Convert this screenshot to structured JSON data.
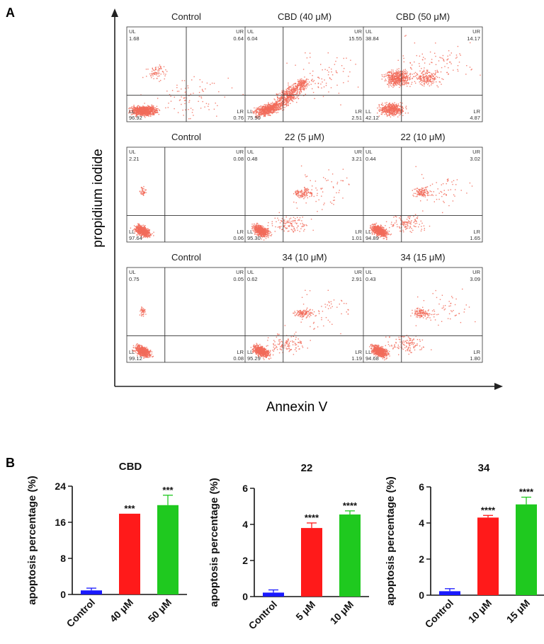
{
  "panel_a": {
    "label": "A",
    "xlabel": "Annexin V",
    "ylabel": "propidium iodide",
    "quadrant_labels": {
      "ul": "UL",
      "ur": "UR",
      "ll": "LL",
      "lr": "LR"
    },
    "plots": [
      {
        "title": "Control",
        "ul": "1.68",
        "ur": "0.64",
        "ll": "96.92",
        "lr": "0.76"
      },
      {
        "title": "CBD (40 μM)",
        "ul": "6.04",
        "ur": "15.55",
        "ll": "75.90",
        "lr": "2.51"
      },
      {
        "title": "CBD (50 μM)",
        "ul": "38.84",
        "ur": "14.17",
        "ll": "42.12",
        "lr": "4.87"
      },
      {
        "title": "Control",
        "ul": "2.21",
        "ur": "0.08",
        "ll": "97.64",
        "lr": "0.06"
      },
      {
        "title": "22 (5 μM)",
        "ul": "0.48",
        "ur": "3.21",
        "ll": "95.30",
        "lr": "1.01"
      },
      {
        "title": "22 (10 μM)",
        "ul": "0.44",
        "ur": "3.02",
        "ll": "94.89",
        "lr": "1.65"
      },
      {
        "title": "Control",
        "ul": "0.75",
        "ur": "0.05",
        "ll": "99.12",
        "lr": "0.08"
      },
      {
        "title": "34 (10 μM)",
        "ul": "0.62",
        "ur": "2.91",
        "ll": "95.29",
        "lr": "1.19"
      },
      {
        "title": "34 (15 μM)",
        "ul": "0.43",
        "ur": "3.09",
        "ll": "94.68",
        "lr": "1.80"
      }
    ]
  },
  "panel_b": {
    "label": "B",
    "ylabel": "apoptosis percentage (%)"
  },
  "chart_data": [
    {
      "type": "bar",
      "title": "CBD",
      "ylabel": "apoptosis percentage (%)",
      "categories": [
        "Control",
        "40 μM",
        "50 μM"
      ],
      "values": [
        0.9,
        17.9,
        19.8
      ],
      "errors": [
        0.5,
        0,
        2.2
      ],
      "significance": [
        "",
        "***",
        "***"
      ],
      "colors": [
        "#1a1aff",
        "#ff1a1a",
        "#1fc91f"
      ],
      "ylim": [
        0,
        24
      ],
      "yticks": [
        0,
        8,
        16,
        24
      ]
    },
    {
      "type": "bar",
      "title": "22",
      "ylabel": "apoptosis percentage (%)",
      "categories": [
        "Control",
        "5 μM",
        "10 μM"
      ],
      "values": [
        0.22,
        3.8,
        4.55
      ],
      "errors": [
        0.15,
        0.28,
        0.2
      ],
      "significance": [
        "",
        "****",
        "****"
      ],
      "colors": [
        "#1a1aff",
        "#ff1a1a",
        "#1fc91f"
      ],
      "ylim": [
        0,
        6
      ],
      "yticks": [
        0,
        2,
        4,
        6
      ]
    },
    {
      "type": "bar",
      "title": "34",
      "ylabel": "apoptosis percentage (%)",
      "categories": [
        "Control",
        "10 μM",
        "15 μM"
      ],
      "values": [
        0.22,
        4.3,
        5.03
      ],
      "errors": [
        0.14,
        0.12,
        0.4
      ],
      "significance": [
        "",
        "****",
        "****"
      ],
      "colors": [
        "#1a1aff",
        "#ff1a1a",
        "#1fc91f"
      ],
      "ylim": [
        0,
        6
      ],
      "yticks": [
        0,
        2,
        4,
        6
      ]
    }
  ]
}
